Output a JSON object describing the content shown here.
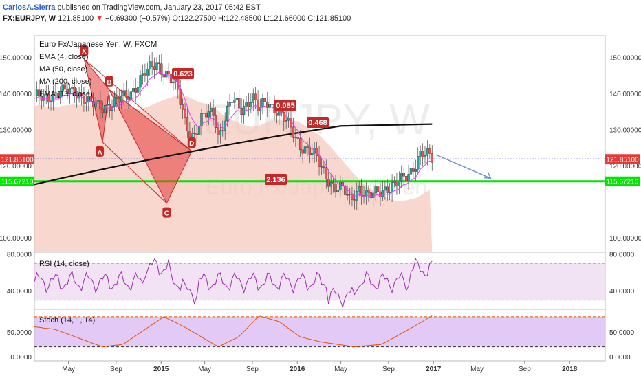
{
  "header": {
    "author": "CarlosA.Sierra",
    "published_text": "published on TradingView.com, January 23, 2017 05:42 EST",
    "symbol": "FX:EURJPY, W",
    "last": "121.85100",
    "change_arrow": "▼",
    "change": "−0.69300 (−0.57%)",
    "ohlc": "O:122.27500 H:122.48500 L:121.66000 C:121.85100"
  },
  "legend": {
    "title": "Euro Fx/Japanese Yen, W, FXCM",
    "studies": [
      "EMA (4, close)",
      "MA (50, close)",
      "MA (200, close)",
      "EMA (13, close)"
    ]
  },
  "watermark": {
    "symbol": "EURJPY, W",
    "name": "Euro Fx/Japanese Yen"
  },
  "colors": {
    "bull": "#26a69a",
    "bear": "#ef5350",
    "pattern_fill": "#e53935",
    "support": "#00e600",
    "ma200": "#111111",
    "ema_pink": "#e040fb",
    "rsi_line": "#9c27b0",
    "stoch_line": "#e65100",
    "projection": "#6f8fd6"
  },
  "chart_data": [
    {
      "type": "candlestick",
      "title": "Euro Fx/Japanese Yen, W, FXCM",
      "ylim": [
        96,
        156
      ],
      "y_ticks": [
        "150.00000",
        "140.00000",
        "130.00000",
        "120.00000",
        "100.00000"
      ],
      "x_ticks": [
        "May",
        "Sep",
        "2015",
        "May",
        "Sep",
        "2016",
        "May",
        "Sep",
        "2017",
        "May",
        "Sep",
        "2018"
      ],
      "price_labels": [
        {
          "value": 121.851,
          "text": "121.85100",
          "color": "#e53935"
        },
        {
          "value": 115.6721,
          "text": "115.67210",
          "color": "#00e600"
        }
      ],
      "harmonic_pattern": {
        "points": [
          {
            "label": "X",
            "t": 0.315,
            "price": 149.5
          },
          {
            "label": "A",
            "t": 0.45,
            "price": 126.5
          },
          {
            "label": "B",
            "t": 0.5,
            "price": 141
          },
          {
            "label": "C",
            "t": 0.921,
            "price": 109.6
          },
          {
            "label": "D",
            "t": 1.105,
            "price": 124
          }
        ],
        "ratios": [
          "0.623",
          "0.085",
          "0.468",
          "2.136"
        ]
      },
      "support_level": 115.6721,
      "ma200_line": {
        "from": [
          0.0,
          114.8
        ],
        "to": [
          1.5,
          131.8
        ]
      }
    },
    {
      "type": "line",
      "title": "RSI (14, close)",
      "ylim": [
        20,
        82
      ],
      "y_ticks": [
        "80.0000",
        "40.0000"
      ],
      "bands": [
        70,
        30
      ]
    },
    {
      "type": "line",
      "title": "Stoch (14, 1, 14)",
      "ylim": [
        -8,
        95
      ],
      "y_ticks": [
        "50.0000",
        "0.0000"
      ],
      "bands": [
        80,
        20
      ]
    }
  ]
}
